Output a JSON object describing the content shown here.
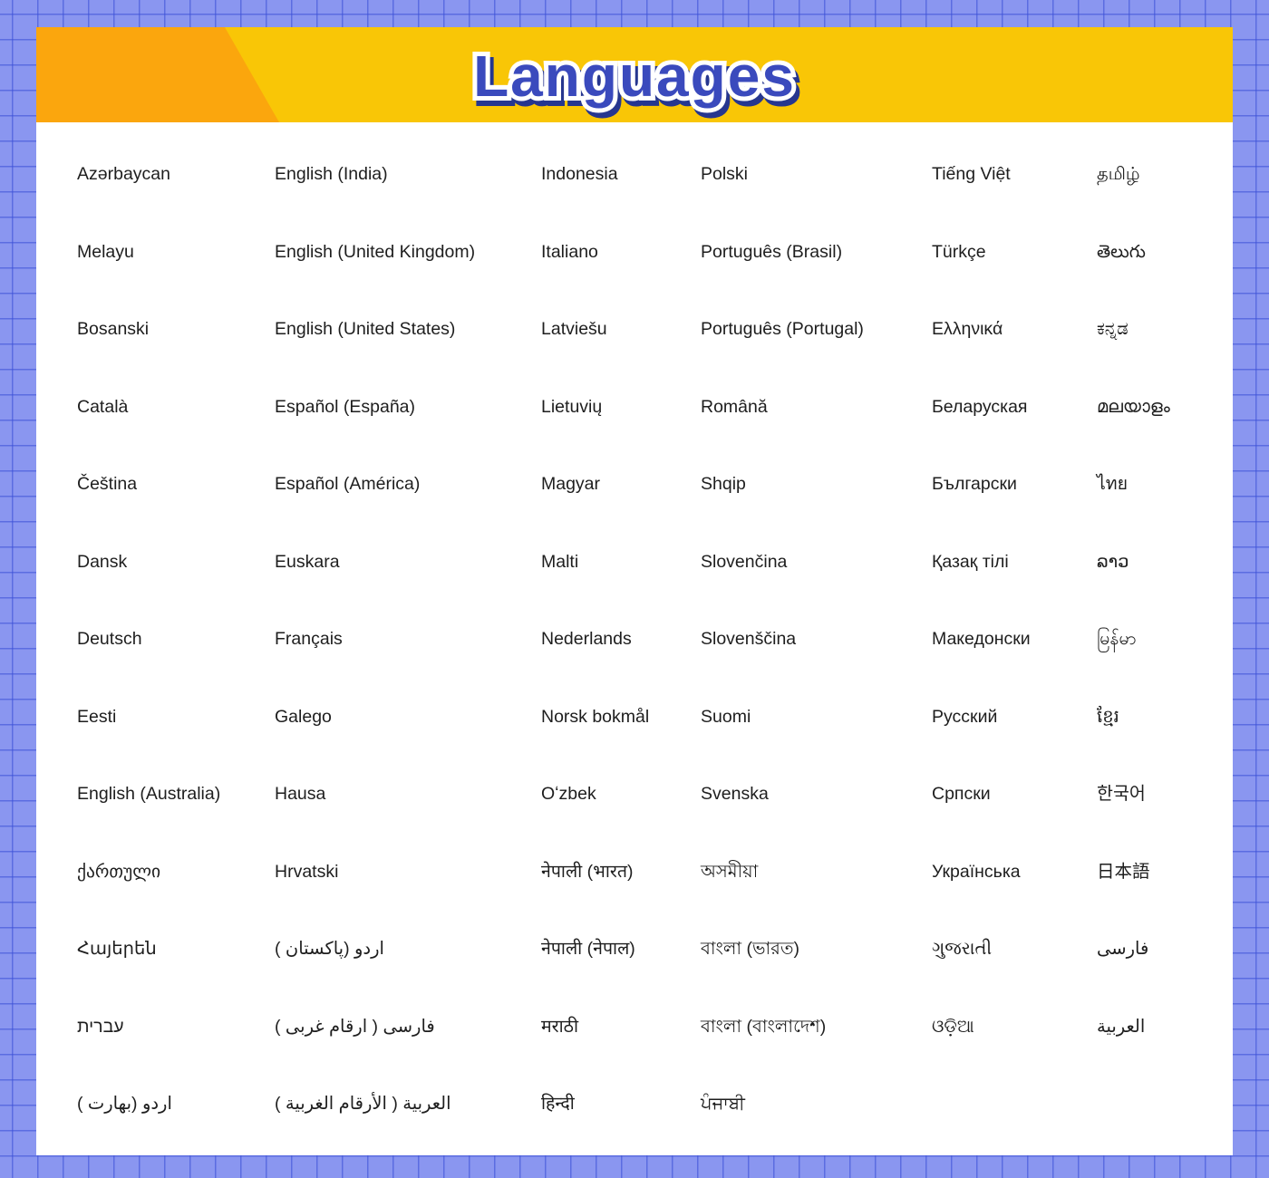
{
  "header": {
    "title": "Languages",
    "banner_color": "#F9C606",
    "accent_wedge_color": "#FBA60D",
    "title_fill_color": "#3A4ABD",
    "title_outline_color": "#FFFFFF",
    "title_shadow_color": "#26368F"
  },
  "panel": {
    "background": "#FFFFFF"
  },
  "page_background": {
    "base_color": "#8A96F0",
    "grid_line_color": "#3C50D7"
  },
  "languages": {
    "columns": [
      {
        "items": [
          "Azərbaycan",
          "Melayu",
          "Bosanski",
          "Català",
          "Čeština",
          "Dansk",
          "Deutsch",
          "Eesti",
          "English (Australia)",
          "ქართული",
          "Հայերեն",
          "עברית",
          "اردو (بهارت )"
        ]
      },
      {
        "items": [
          "English (India)",
          "English (United Kingdom)",
          "English (United States)",
          "Español (España)",
          "Español (América)",
          "Euskara",
          "Français",
          "Galego",
          "Hausa",
          "Hrvatski",
          "اردو (پاکستان )",
          "فارسی ( ارقام غربی )",
          "العربية ( الأرقام الغربية )"
        ]
      },
      {
        "items": [
          "Indonesia",
          "Italiano",
          "Latviešu",
          "Lietuvių",
          "Magyar",
          "Malti",
          "Nederlands",
          "Norsk bokmål",
          "Oʻzbek",
          "नेपाली (भारत)",
          "नेपाली (नेपाल)",
          "मराठी",
          "हिन्दी"
        ]
      },
      {
        "items": [
          "Polski",
          "Português (Brasil)",
          "Português (Portugal)",
          "Română",
          "Shqip",
          "Slovenčina",
          "Slovenščina",
          "Suomi",
          "Svenska",
          "অসমীয়া",
          "বাংলা (ভারত)",
          "বাংলা (বাংলাদেশ)",
          "ਪੰਜਾਬੀ"
        ]
      },
      {
        "items": [
          "Tiếng Việt",
          "Türkçe",
          "Ελληνικά",
          "Беларуская",
          "Български",
          "Қазақ тілі",
          "Македонски",
          "Русский",
          "Српски",
          "Українська",
          "ગુજરાતી",
          "ଓଡ଼ିଆ"
        ]
      },
      {
        "items": [
          "தமிழ்",
          "తెలుగు",
          "ಕನ್ನಡ",
          "മലയാളം",
          "ไทย",
          "ລາວ",
          "မြန်မာ",
          "ខ្មែរ",
          "한국어",
          "日本語",
          "فارسی",
          "العربية"
        ]
      }
    ]
  }
}
